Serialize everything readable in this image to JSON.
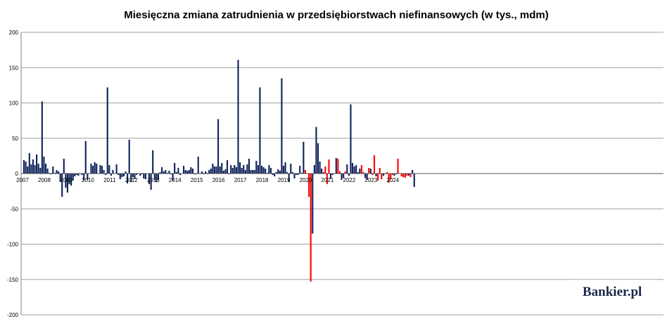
{
  "chart_data": {
    "type": "bar",
    "title": "Miesięczna zmiana zatrudnienia w przedsiębiorstwach niefinansowych (w tys., mdm)",
    "xlabel": "",
    "ylabel": "",
    "ylim": [
      -200,
      200
    ],
    "y_ticks": [
      "200",
      "150",
      "100",
      "50",
      "0",
      "-50",
      "-100",
      "-150",
      "-200"
    ],
    "x_ticks": [
      "2007",
      "2008",
      "2009",
      "2010",
      "2011",
      "2012",
      "2013",
      "2014",
      "2015",
      "2016",
      "2017",
      "2018",
      "2019",
      "2020",
      "2021",
      "2022",
      "2023",
      "2024"
    ],
    "grid": true,
    "colors": {
      "default": "#0d2159",
      "highlight": "#ff0000",
      "grid": "#a0a0a0",
      "axis": "#808080"
    },
    "series": [
      {
        "values": [
          19,
          17,
          10,
          29,
          13,
          20,
          12,
          27,
          14,
          8,
          102,
          24,
          14,
          7,
          1,
          -1,
          10,
          1,
          5,
          3,
          -12,
          -33,
          21,
          -20,
          -27,
          -15,
          -17,
          -10,
          -4,
          -2,
          -3,
          0,
          -2,
          -10,
          46,
          -9,
          0,
          14,
          11,
          16,
          14,
          0,
          12,
          11,
          5,
          -2,
          122,
          12,
          -3,
          5,
          0,
          13,
          -2,
          -8,
          -5,
          -4,
          3,
          -14,
          48,
          -12,
          -5,
          -8,
          -2,
          0,
          -3,
          -1,
          -7,
          -8,
          0,
          -15,
          -23,
          33,
          -9,
          -12,
          -9,
          2,
          9,
          3,
          5,
          1,
          4,
          -1,
          -10,
          15,
          2,
          8,
          -2,
          0,
          11,
          5,
          4,
          5,
          9,
          7,
          -1,
          -1,
          24,
          0,
          3,
          -1,
          3,
          1,
          5,
          7,
          14,
          10,
          10,
          77,
          10,
          15,
          4,
          6,
          19,
          -1,
          12,
          8,
          12,
          9,
          161,
          16,
          8,
          12,
          5,
          13,
          21,
          5,
          5,
          5,
          18,
          12,
          122,
          11,
          9,
          7,
          1,
          12,
          8,
          -2,
          -4,
          2,
          6,
          4,
          135,
          11,
          16,
          2,
          -12,
          14,
          2,
          -7,
          -2,
          -2,
          11,
          1,
          45,
          5,
          0,
          -33,
          -153,
          -85,
          12,
          66,
          43,
          17,
          7,
          2,
          10,
          -15,
          20,
          -7,
          -2,
          0,
          22,
          21,
          3,
          -9,
          -6,
          3,
          13,
          -3,
          98,
          15,
          10,
          12,
          2,
          7,
          12,
          2,
          -6,
          -9,
          8,
          7,
          -2,
          26,
          -4,
          -10,
          8,
          -8,
          -3,
          -1,
          2,
          -13,
          -8,
          -2,
          -3,
          -1,
          21,
          0,
          -4,
          -5,
          -6,
          -3,
          -3,
          -5,
          5,
          -19
        ],
        "highlight": [
          0,
          0,
          0,
          0,
          0,
          0,
          0,
          0,
          0,
          0,
          0,
          0,
          0,
          0,
          0,
          0,
          0,
          0,
          0,
          0,
          0,
          0,
          0,
          0,
          0,
          0,
          0,
          0,
          0,
          0,
          0,
          0,
          0,
          0,
          0,
          0,
          0,
          0,
          0,
          0,
          0,
          0,
          0,
          0,
          0,
          0,
          0,
          0,
          0,
          0,
          0,
          0,
          0,
          0,
          0,
          0,
          0,
          0,
          0,
          0,
          0,
          0,
          0,
          0,
          0,
          0,
          0,
          0,
          0,
          0,
          0,
          0,
          0,
          0,
          0,
          0,
          0,
          0,
          0,
          0,
          0,
          0,
          0,
          0,
          0,
          0,
          0,
          0,
          0,
          0,
          0,
          0,
          0,
          0,
          0,
          0,
          0,
          0,
          0,
          0,
          0,
          0,
          0,
          0,
          0,
          0,
          0,
          0,
          0,
          0,
          0,
          0,
          0,
          0,
          0,
          0,
          0,
          0,
          0,
          0,
          0,
          0,
          0,
          0,
          0,
          0,
          0,
          0,
          0,
          0,
          0,
          0,
          0,
          0,
          0,
          0,
          0,
          0,
          0,
          0,
          0,
          0,
          0,
          0,
          0,
          0,
          0,
          0,
          0,
          0,
          0,
          0,
          0,
          0,
          0,
          1,
          1,
          1,
          1,
          0,
          0,
          0,
          0,
          0,
          0,
          1,
          1,
          1,
          1,
          0,
          0,
          0,
          0,
          1,
          1,
          0,
          0,
          1,
          0,
          0,
          0,
          0,
          0,
          0,
          0,
          0,
          1,
          1,
          0,
          0,
          1,
          0,
          1,
          1,
          0,
          1,
          1,
          1,
          0,
          1,
          1,
          1,
          1,
          1,
          0,
          0,
          1,
          1,
          1,
          1,
          1,
          1,
          0,
          1
        ]
      }
    ]
  },
  "watermark": {
    "brand": "Bankier",
    "suffix": ".pl"
  }
}
